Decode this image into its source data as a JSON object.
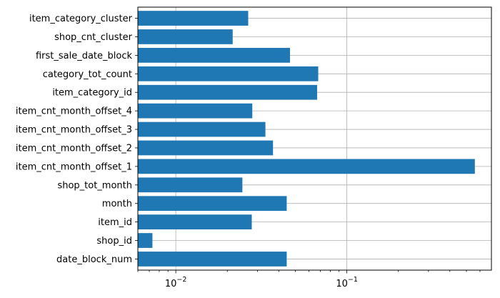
{
  "chart_data": {
    "type": "bar",
    "orientation": "horizontal",
    "categories": [
      "date_block_num",
      "shop_id",
      "item_id",
      "month",
      "shop_tot_month",
      "item_cnt_month_offset_1",
      "item_cnt_month_offset_2",
      "item_cnt_month_offset_3",
      "item_cnt_month_offset_4",
      "item_category_id",
      "category_tot_count",
      "first_sale_date_block",
      "shop_cnt_cluster",
      "item_category_cluster"
    ],
    "values": [
      0.0445,
      0.0073,
      0.0278,
      0.0445,
      0.0245,
      0.56,
      0.037,
      0.0334,
      0.028,
      0.067,
      0.068,
      0.0465,
      0.0215,
      0.0265
    ],
    "xscale": "log",
    "xlim": [
      0.006,
      0.7
    ],
    "xticks": [
      {
        "value": 0.01,
        "base": "10",
        "exp": "−2"
      },
      {
        "value": 0.1,
        "base": "10",
        "exp": "−1"
      }
    ],
    "grid": true,
    "bar_color": "#1f77b4",
    "title": "",
    "xlabel": "",
    "ylabel": ""
  }
}
